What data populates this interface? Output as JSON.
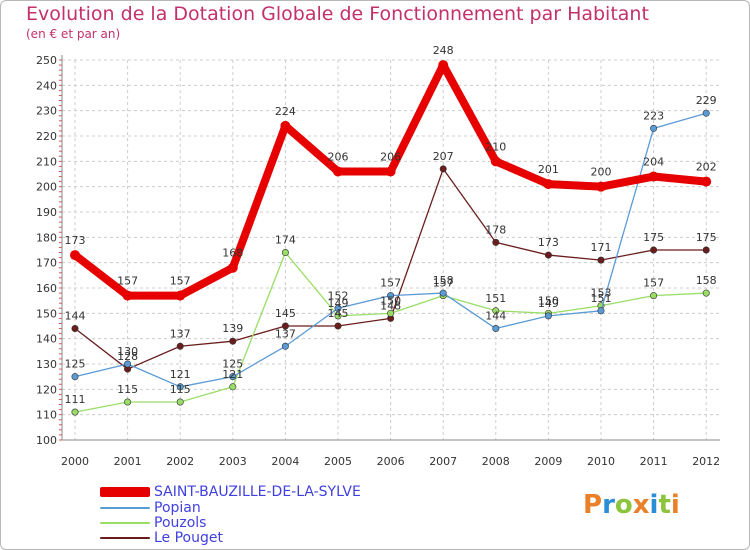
{
  "title": "Evolution de la Dotation Globale de Fonctionnement par Habitant",
  "subtitle": "(en € et par an)",
  "logo": {
    "text": "Proxiti",
    "colors": [
      "#e8812a",
      "#2b8fd8",
      "#8cc43c",
      "#e8812a",
      "#2b8fd8",
      "#8cc43c",
      "#e8812a"
    ]
  },
  "chart_data": {
    "type": "line",
    "x": [
      "2000",
      "2001",
      "2002",
      "2003",
      "2004",
      "2005",
      "2006",
      "2007",
      "2008",
      "2009",
      "2010",
      "2011",
      "2012"
    ],
    "ylim": [
      100,
      250
    ],
    "yticks": [
      100,
      110,
      120,
      130,
      140,
      150,
      160,
      170,
      180,
      190,
      200,
      210,
      220,
      230,
      240,
      250
    ],
    "grid": true,
    "legend_position": "bottom-left",
    "series": [
      {
        "name": "SAINT-BAUZILLE-DE-LA-SYLVE",
        "color": "#e60000",
        "values": [
          173,
          157,
          157,
          168,
          224,
          206,
          206,
          248,
          210,
          201,
          200,
          204,
          202
        ]
      },
      {
        "name": "Popian",
        "color": "#5b9bd5",
        "values": [
          125,
          130,
          121,
          125,
          137,
          152,
          157,
          158,
          144,
          149,
          151,
          223,
          229
        ]
      },
      {
        "name": "Pouzols",
        "color": "#99dd66",
        "values": [
          111,
          115,
          115,
          121,
          174,
          149,
          150,
          157,
          151,
          150,
          153,
          157,
          158
        ]
      },
      {
        "name": "Le Pouget",
        "color": "#6b1d1d",
        "values": [
          144,
          128,
          137,
          139,
          145,
          145,
          148,
          207,
          178,
          173,
          171,
          175,
          175
        ]
      }
    ]
  }
}
